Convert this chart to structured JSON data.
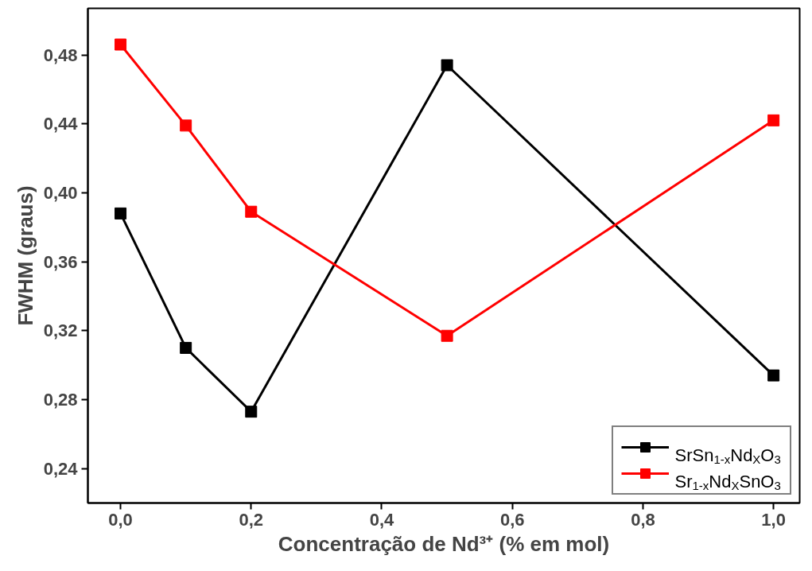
{
  "chart_data": {
    "type": "line",
    "xlabel": "Concentração de Nd³⁺ (% em mol)",
    "ylabel": "FWHM (graus)",
    "x": [
      0.0,
      0.1,
      0.2,
      0.5,
      1.0
    ],
    "series": [
      {
        "name": "SrSn$_{1-x}$Nd$_{X}$O$_{3}$",
        "color": "#000000",
        "values": [
          0.388,
          0.31,
          0.273,
          0.474,
          0.294
        ]
      },
      {
        "name": "Sr$_{1-x}$Nd$_{X}$SnO$_{3}$",
        "color": "#ff0000",
        "values": [
          0.486,
          0.439,
          0.389,
          0.317,
          0.442
        ]
      }
    ],
    "xlim": [
      -0.05,
      1.04
    ],
    "ylim": [
      0.22,
      0.507
    ],
    "xticks": [
      {
        "value": 0.0,
        "label": "0,0"
      },
      {
        "value": 0.2,
        "label": "0,2"
      },
      {
        "value": 0.4,
        "label": "0,4"
      },
      {
        "value": 0.6,
        "label": "0,6"
      },
      {
        "value": 0.8,
        "label": "0,8"
      },
      {
        "value": 1.0,
        "label": "1,0"
      }
    ],
    "yticks": [
      {
        "value": 0.24,
        "label": "0,24"
      },
      {
        "value": 0.28,
        "label": "0,28"
      },
      {
        "value": 0.32,
        "label": "0,32"
      },
      {
        "value": 0.36,
        "label": "0,36"
      },
      {
        "value": 0.4,
        "label": "0,40"
      },
      {
        "value": 0.44,
        "label": "0,44"
      },
      {
        "value": 0.48,
        "label": "0,48"
      }
    ],
    "grid": false,
    "legend": "bottom right",
    "marker": "square",
    "line_style": "solid"
  }
}
